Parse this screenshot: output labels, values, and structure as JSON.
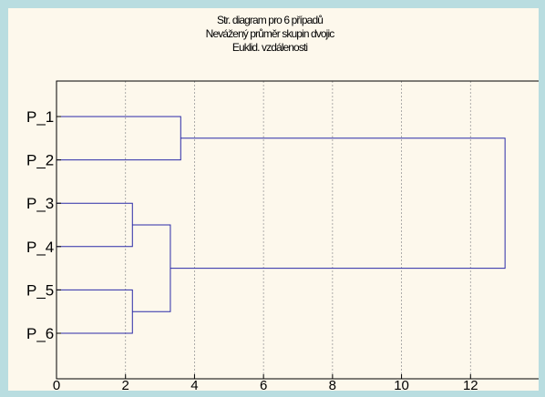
{
  "chart_data": {
    "type": "dendrogram",
    "title_lines": [
      "Str. diagram pro 6 případů",
      "Nevážený průměr skupin dvojic",
      "Euklid. vzdálenosti"
    ],
    "leaves": [
      "P_1",
      "P_2",
      "P_3",
      "P_4",
      "P_5",
      "P_6"
    ],
    "xlim": [
      0,
      14
    ],
    "xticks": [
      0,
      2,
      4,
      6,
      8,
      10,
      12
    ],
    "grid": "vertical dotted",
    "orientation": "horizontal",
    "merges": [
      {
        "a": "P_1",
        "b": "P_2",
        "distance": 3.6
      },
      {
        "a": "P_3",
        "b": "P_4",
        "distance": 2.2
      },
      {
        "a": "P_5",
        "b": "P_6",
        "distance": 2.2
      },
      {
        "a": "P_3+P_4",
        "b": "P_5+P_6",
        "distance": 3.3
      },
      {
        "a": "P_1+P_2",
        "b": "P_3+P_4+P_5+P_6",
        "distance": 13.0
      }
    ],
    "line_color": "#2a2aa8"
  }
}
